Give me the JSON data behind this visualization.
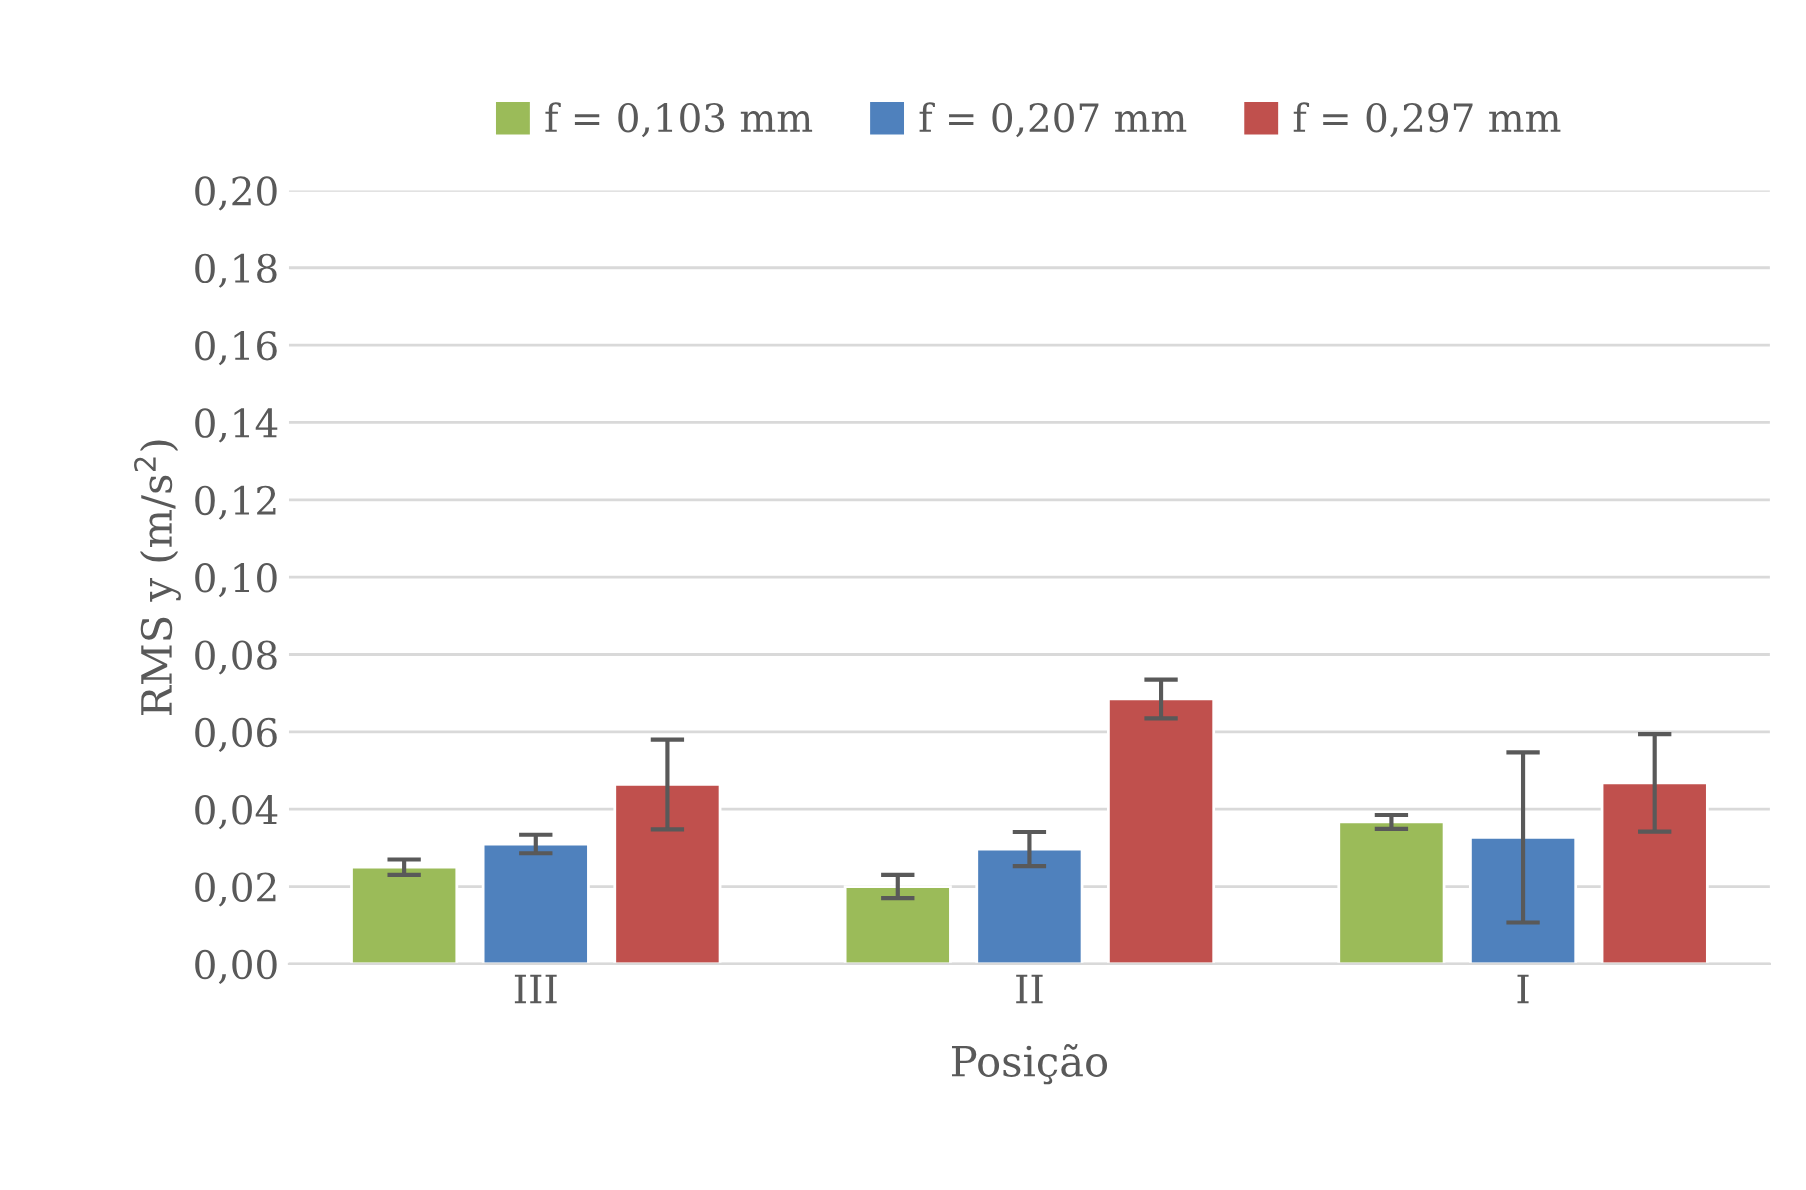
{
  "chart_data": {
    "type": "bar",
    "xlabel": "Posição",
    "ylabel": "RMS y (m/s$^{2}$)",
    "categories": [
      "III",
      "II",
      "I"
    ],
    "series": [
      {
        "name": "f = 0,103 mm",
        "color": "#9bbb59",
        "values": [
          0.025,
          0.02,
          0.0367
        ],
        "errors": [
          0.002,
          0.003,
          0.0018
        ]
      },
      {
        "name": "f = 0,207 mm",
        "color": "#4f81bd",
        "values": [
          0.031,
          0.0297,
          0.0327
        ],
        "errors": [
          0.0024,
          0.0044,
          0.022
        ]
      },
      {
        "name": "f = 0,297 mm",
        "color": "#c0504d",
        "values": [
          0.0464,
          0.0685,
          0.0468
        ],
        "errors": [
          0.0116,
          0.005,
          0.0126
        ]
      }
    ],
    "ylim": [
      0,
      0.2
    ],
    "yticks": [
      {
        "value": 0,
        "label": "0,00"
      },
      {
        "value": 0.02,
        "label": "0,02"
      },
      {
        "value": 0.04,
        "label": "0,04"
      },
      {
        "value": 0.06,
        "label": "0,06"
      },
      {
        "value": 0.08,
        "label": "0,08"
      },
      {
        "value": 0.1,
        "label": "0,10"
      },
      {
        "value": 0.12,
        "label": "0,12"
      },
      {
        "value": 0.14,
        "label": "0,14"
      },
      {
        "value": 0.16,
        "label": "0,16"
      },
      {
        "value": 0.18,
        "label": "0,18"
      },
      {
        "value": 0.2,
        "label": "0,20"
      }
    ],
    "grid": "y",
    "legend": "top"
  }
}
